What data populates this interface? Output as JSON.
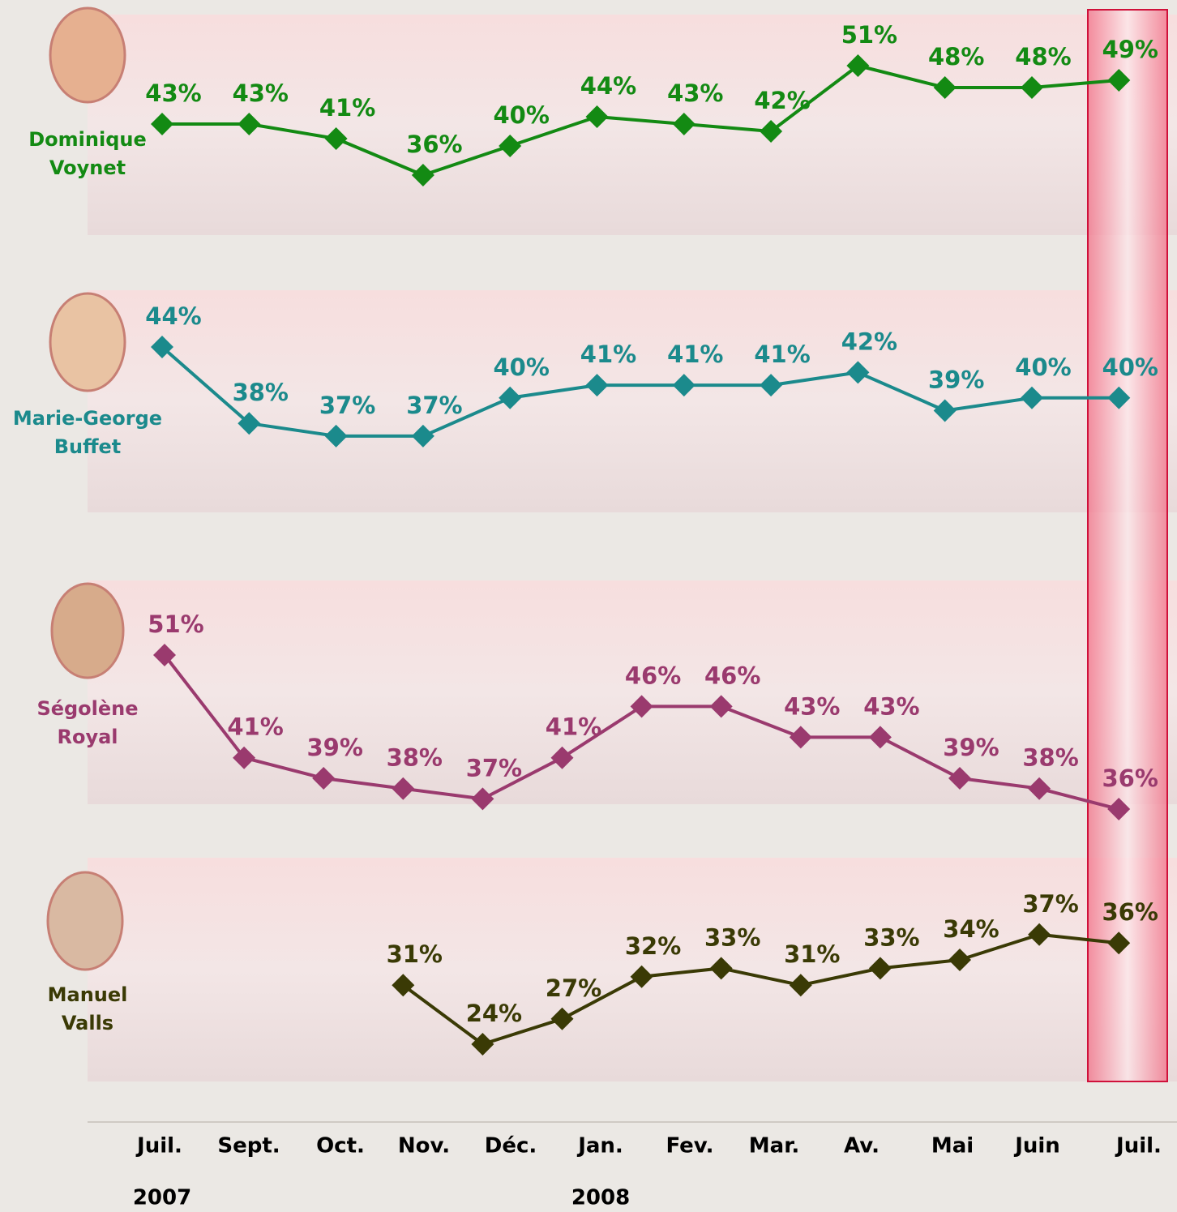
{
  "chart_data": [
    {
      "type": "line",
      "categories": [
        "Juil.",
        "Sept.",
        "Oct.",
        "Nov.",
        "Déc.",
        "Jan.",
        "Fev.",
        "Mar.",
        "Av.",
        "Mai",
        "Juin",
        "Juil."
      ],
      "years": [
        "2007",
        "2008"
      ],
      "series": [
        {
          "name": "Dominique Voynet",
          "color": "#138a13",
          "values": [
            43,
            43,
            41,
            36,
            40,
            44,
            43,
            42,
            51,
            48,
            48,
            49
          ],
          "value_labels": [
            "43%",
            "43%",
            "41%",
            "36%",
            "40%",
            "44%",
            "43%",
            "42%",
            "51%",
            "48%",
            "48%",
            "49%"
          ]
        },
        {
          "name": "Marie-George Buffet",
          "color": "#1b8a8c",
          "values": [
            44,
            38,
            37,
            37,
            40,
            41,
            41,
            41,
            42,
            39,
            40,
            40
          ],
          "value_labels": [
            "44%",
            "38%",
            "37%",
            "37%",
            "40%",
            "41%",
            "41%",
            "41%",
            "42%",
            "39%",
            "40%",
            "40%"
          ]
        }
      ]
    },
    {
      "type": "line",
      "series": [
        {
          "name": "Ségolène Royal",
          "color": "#9a3a6e",
          "values": [
            51,
            41,
            39,
            38,
            37,
            41,
            46,
            46,
            43,
            43,
            39,
            38,
            36
          ],
          "value_labels": [
            "51%",
            "41%",
            "39%",
            "38%",
            "37%",
            "41%",
            "46%",
            "46%",
            "43%",
            "43%",
            "39%",
            "38%",
            "36%"
          ]
        },
        {
          "name": "Manuel Valls",
          "color": "#3a3a05",
          "values": [
            null,
            null,
            null,
            31,
            24,
            27,
            32,
            33,
            31,
            33,
            34,
            37,
            36
          ],
          "value_labels": [
            null,
            null,
            null,
            "31%",
            "24%",
            "27%",
            "32%",
            "33%",
            "31%",
            "33%",
            "34%",
            "37%",
            "36%"
          ]
        }
      ]
    }
  ]
}
